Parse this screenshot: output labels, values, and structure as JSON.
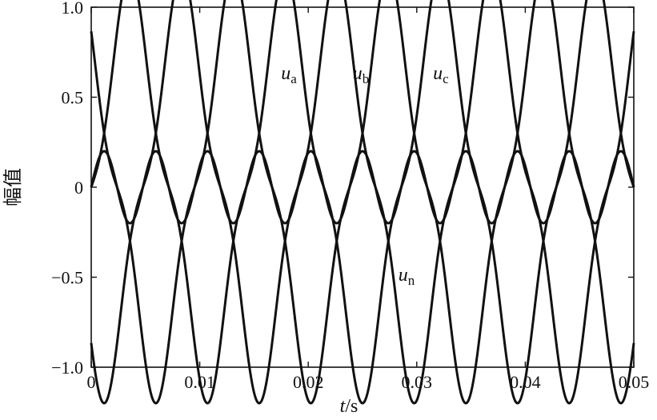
{
  "chart_data": {
    "type": "line",
    "title": "",
    "xlabel_var": "t",
    "xlabel_unit": "/s",
    "ylabel": "幅值",
    "xlim": [
      0,
      0.05
    ],
    "ylim": [
      -1.0,
      1.0
    ],
    "grid": false,
    "xticks": [
      0,
      0.01,
      0.02,
      0.03,
      0.04,
      0.05
    ],
    "xtick_labels": [
      "0",
      "0.01",
      "0.02",
      "0.03",
      "0.04",
      "0.05"
    ],
    "yticks": [
      -1.0,
      -0.5,
      0,
      0.5,
      1.0
    ],
    "ytick_labels": [
      "−1.0",
      "−0.5",
      "0",
      "0.5",
      "1.0"
    ],
    "frequency_hz": 70,
    "fundamental_amplitude": 1.0,
    "third_harmonic_amplitude": 0.2,
    "series": [
      {
        "name": "ua",
        "label_main": "u",
        "label_sub": "a",
        "phase_deg": 0,
        "harmonic3_phase_deg": 0
      },
      {
        "name": "ub",
        "label_main": "u",
        "label_sub": "b",
        "phase_deg": -120,
        "harmonic3_phase_deg": 0
      },
      {
        "name": "uc",
        "label_main": "u",
        "label_sub": "c",
        "phase_deg": 120,
        "harmonic3_phase_deg": 0
      },
      {
        "name": "un",
        "label_main": "u",
        "label_sub": "n",
        "phase_deg": null,
        "harmonic3_phase_deg": 0
      }
    ],
    "annotations": [
      {
        "series": "ua",
        "x": 0.0175,
        "y": 0.6
      },
      {
        "series": "ub",
        "x": 0.0241,
        "y": 0.6
      },
      {
        "series": "uc",
        "x": 0.0315,
        "y": 0.6
      },
      {
        "series": "un",
        "x": 0.0283,
        "y": -0.52
      }
    ]
  }
}
